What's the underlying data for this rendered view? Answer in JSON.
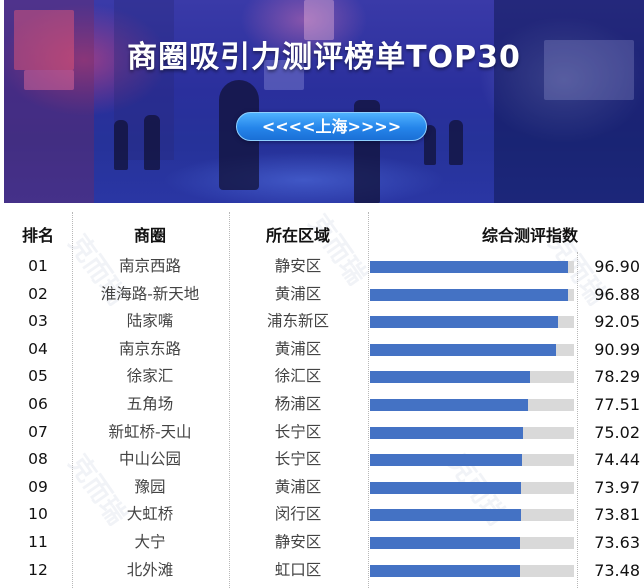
{
  "banner": {
    "title": "商圈吸引力测评榜单TOP30",
    "city_label": "<<<<上海>>>>"
  },
  "watermark_text": "克而瑞",
  "table": {
    "headers": {
      "rank": "排名",
      "district_name": "商圈",
      "region": "所在区域",
      "score": "综合测评指数"
    },
    "rows": [
      {
        "rank": "01",
        "name": "南京西路",
        "region": "静安区",
        "score": "96.90"
      },
      {
        "rank": "02",
        "name": "淮海路-新天地",
        "region": "黄浦区",
        "score": "96.88"
      },
      {
        "rank": "03",
        "name": "陆家嘴",
        "region": "浦东新区",
        "score": "92.05"
      },
      {
        "rank": "04",
        "name": "南京东路",
        "region": "黄浦区",
        "score": "90.99"
      },
      {
        "rank": "05",
        "name": "徐家汇",
        "region": "徐汇区",
        "score": "78.29"
      },
      {
        "rank": "06",
        "name": "五角场",
        "region": "杨浦区",
        "score": "77.51"
      },
      {
        "rank": "07",
        "name": "新虹桥-天山",
        "region": "长宁区",
        "score": "75.02"
      },
      {
        "rank": "08",
        "name": "中山公园",
        "region": "长宁区",
        "score": "74.44"
      },
      {
        "rank": "09",
        "name": "豫园",
        "region": "黄浦区",
        "score": "73.97"
      },
      {
        "rank": "10",
        "name": "大虹桥",
        "region": "闵行区",
        "score": "73.81"
      },
      {
        "rank": "11",
        "name": "大宁",
        "region": "静安区",
        "score": "73.63"
      },
      {
        "rank": "12",
        "name": "北外滩",
        "region": "虹口区",
        "score": "73.48"
      }
    ]
  },
  "colors": {
    "bar_fill": "#4472c4",
    "bar_track": "#d9d9d9",
    "pill": "#2585ea",
    "banner": "#2a2f9c"
  },
  "chart_data": {
    "type": "bar",
    "orientation": "horizontal",
    "title": "商圈吸引力测评榜单TOP30",
    "subtitle": "<<<<上海>>>>",
    "xlabel": "综合测评指数",
    "ylabel": "商圈",
    "xlim": [
      0,
      100
    ],
    "grid": false,
    "legend": "none",
    "categories": [
      "南京西路",
      "淮海路-新天地",
      "陆家嘴",
      "南京东路",
      "徐家汇",
      "五角场",
      "新虹桥-天山",
      "中山公园",
      "豫园",
      "大虹桥",
      "大宁",
      "北外滩"
    ],
    "regions": [
      "静安区",
      "黄浦区",
      "浦东新区",
      "黄浦区",
      "徐汇区",
      "杨浦区",
      "长宁区",
      "长宁区",
      "黄浦区",
      "闵行区",
      "静安区",
      "虹口区"
    ],
    "ranks": [
      "01",
      "02",
      "03",
      "04",
      "05",
      "06",
      "07",
      "08",
      "09",
      "10",
      "11",
      "12"
    ],
    "values": [
      96.9,
      96.88,
      92.05,
      90.99,
      78.29,
      77.51,
      75.02,
      74.44,
      73.97,
      73.81,
      73.63,
      73.48
    ]
  }
}
